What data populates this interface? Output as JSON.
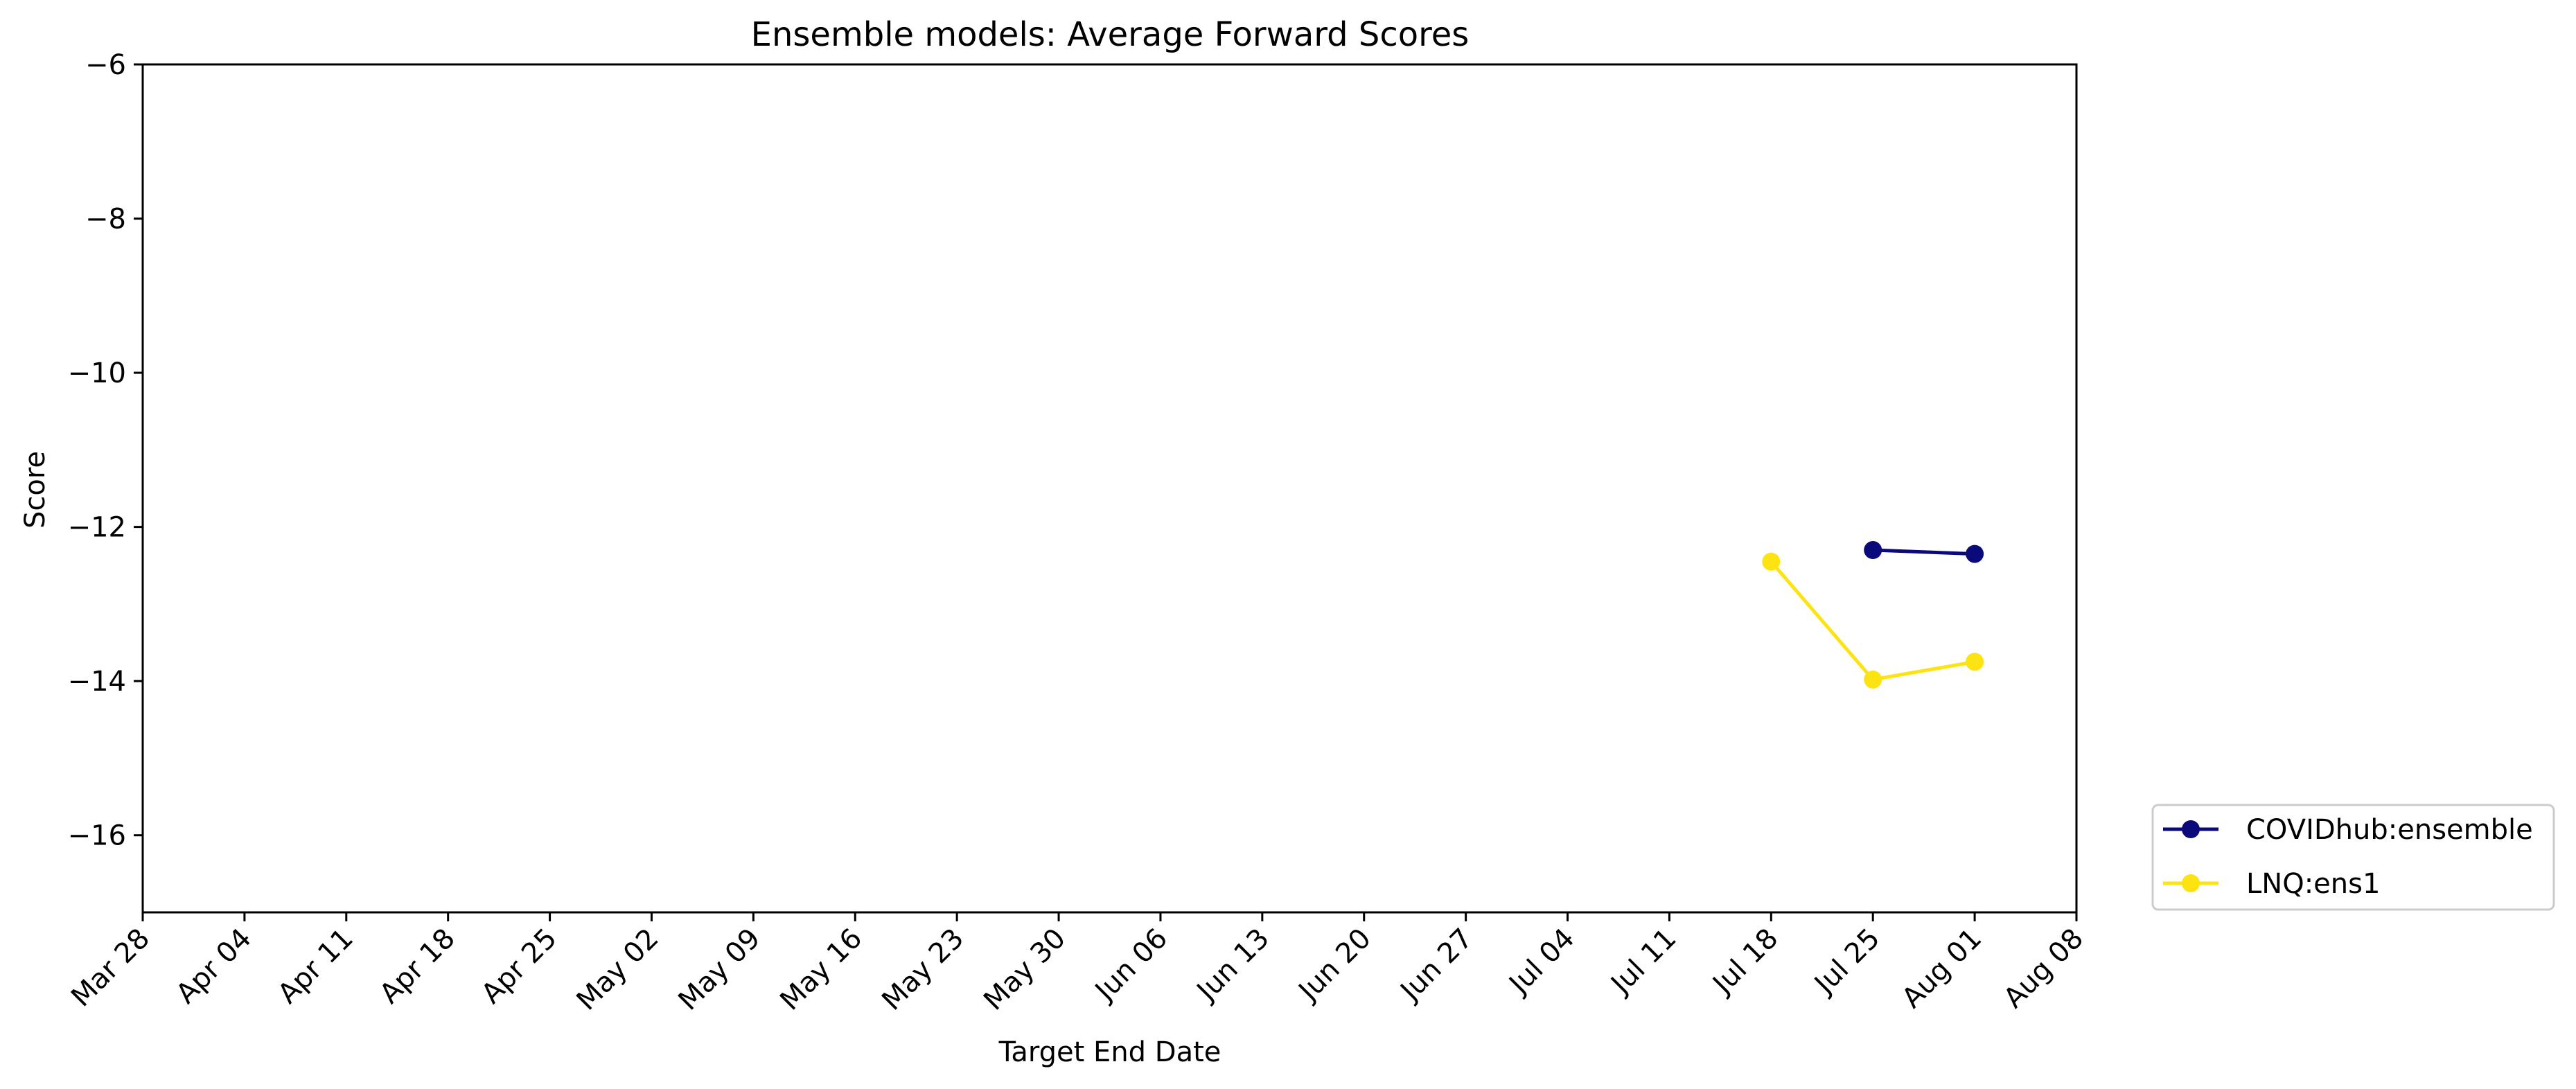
{
  "chart_data": {
    "type": "line",
    "title": "Ensemble models: Average Forward Scores",
    "xlabel": "Target End Date",
    "ylabel": "Score",
    "ylim": [
      -17,
      -6
    ],
    "yticks": [
      -6,
      -8,
      -10,
      -12,
      -14,
      -16
    ],
    "ytick_labels": [
      "−6",
      "−8",
      "−10",
      "−12",
      "−14",
      "−16"
    ],
    "x_tick_labels": [
      "Mar 28",
      "Apr 04",
      "Apr 11",
      "Apr 18",
      "Apr 25",
      "May 02",
      "May 09",
      "May 16",
      "May 23",
      "May 30",
      "Jun 06",
      "Jun 13",
      "Jun 20",
      "Jun 27",
      "Jul 04",
      "Jul 11",
      "Jul 18",
      "Jul 25",
      "Aug 01",
      "Aug 08"
    ],
    "grid": false,
    "legend_position": "outside-lower-right",
    "series": [
      {
        "name": "COVIDhub:ensemble",
        "color": "#0a0a7a",
        "x": [
          "Jul 25",
          "Aug 01"
        ],
        "values": [
          -12.3,
          -12.35
        ]
      },
      {
        "name": "LNQ:ens1",
        "color": "#fde311",
        "x": [
          "Jul 18",
          "Jul 25",
          "Aug 01"
        ],
        "values": [
          -12.45,
          -13.98,
          -13.75
        ]
      }
    ]
  }
}
